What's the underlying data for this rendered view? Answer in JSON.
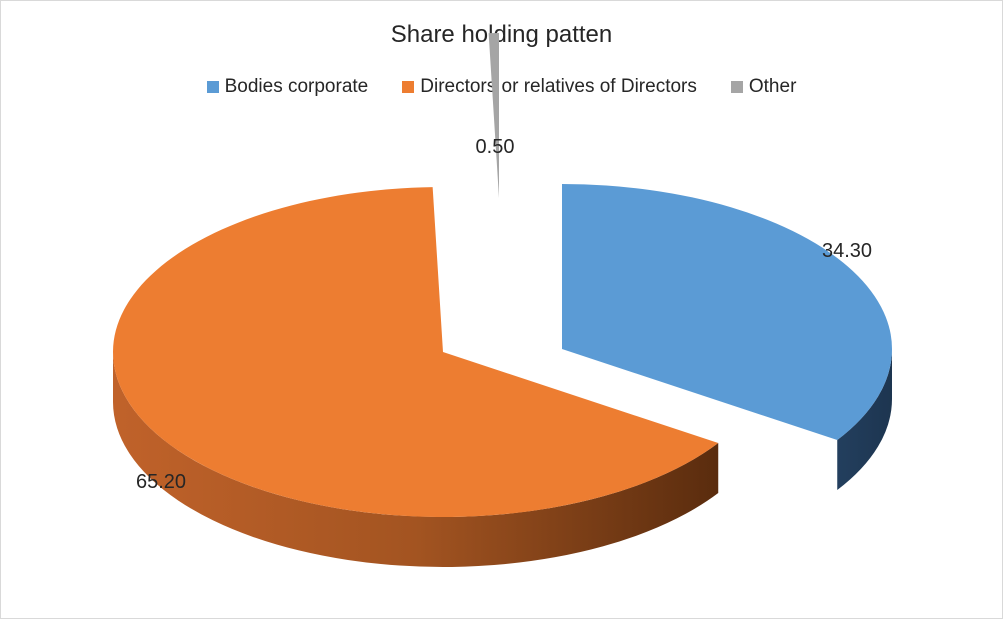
{
  "chart_data": {
    "type": "pie",
    "title": "Share holding patten",
    "legend_position": "top",
    "series": [
      {
        "name": "Bodies corporate",
        "value": 34.3,
        "label": "34.30",
        "color": "#5b9bd5"
      },
      {
        "name": "Directors or relatives of Directors",
        "value": 65.2,
        "label": "65.20",
        "color": "#ed7d31"
      },
      {
        "name": "Other",
        "value": 0.5,
        "label": "0.50",
        "color": "#a5a5a5"
      }
    ]
  }
}
